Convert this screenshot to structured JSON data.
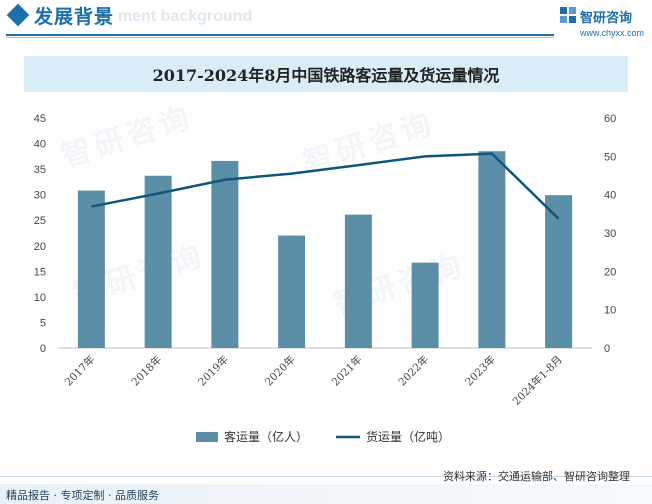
{
  "header": {
    "title": "发展背景",
    "ghost_text": "ment background",
    "brand_name": "智研咨询",
    "brand_url": "www.chyxx.com"
  },
  "watermark_text": "智研咨询",
  "colors": {
    "accent": "#1e6fa8",
    "bar": "#5b8fa8",
    "line": "#0e5878",
    "title_bg": "#d9edf7"
  },
  "chart_data": {
    "type": "bar",
    "title": "2017-2024年8月中国铁路客运量及货运量情况",
    "categories": [
      "2017年",
      "2018年",
      "2019年",
      "2020年",
      "2021年",
      "2022年",
      "2023年",
      "2024年1-8月"
    ],
    "series": [
      {
        "name": "客运量（亿人）",
        "type": "bar",
        "axis": "left",
        "values": [
          30.8,
          33.7,
          36.6,
          22.0,
          26.1,
          16.7,
          38.5,
          29.9
        ]
      },
      {
        "name": "货运量（亿吨）",
        "type": "line",
        "axis": "right",
        "values": [
          36.9,
          40.3,
          43.9,
          45.5,
          47.7,
          50.0,
          50.7,
          33.7
        ]
      }
    ],
    "y_left": {
      "min": 0,
      "max": 45,
      "ticks": [
        0,
        5,
        10,
        15,
        20,
        25,
        30,
        35,
        40,
        45
      ]
    },
    "y_right": {
      "min": 0,
      "max": 60,
      "ticks": [
        0,
        10,
        20,
        30,
        40,
        50,
        60
      ]
    },
    "grid": false,
    "legend_position": "bottom"
  },
  "footer": {
    "source": "资料来源：交通运输部、智研咨询整理",
    "tagline": "精品报告 · 专项定制 · 品质服务"
  }
}
